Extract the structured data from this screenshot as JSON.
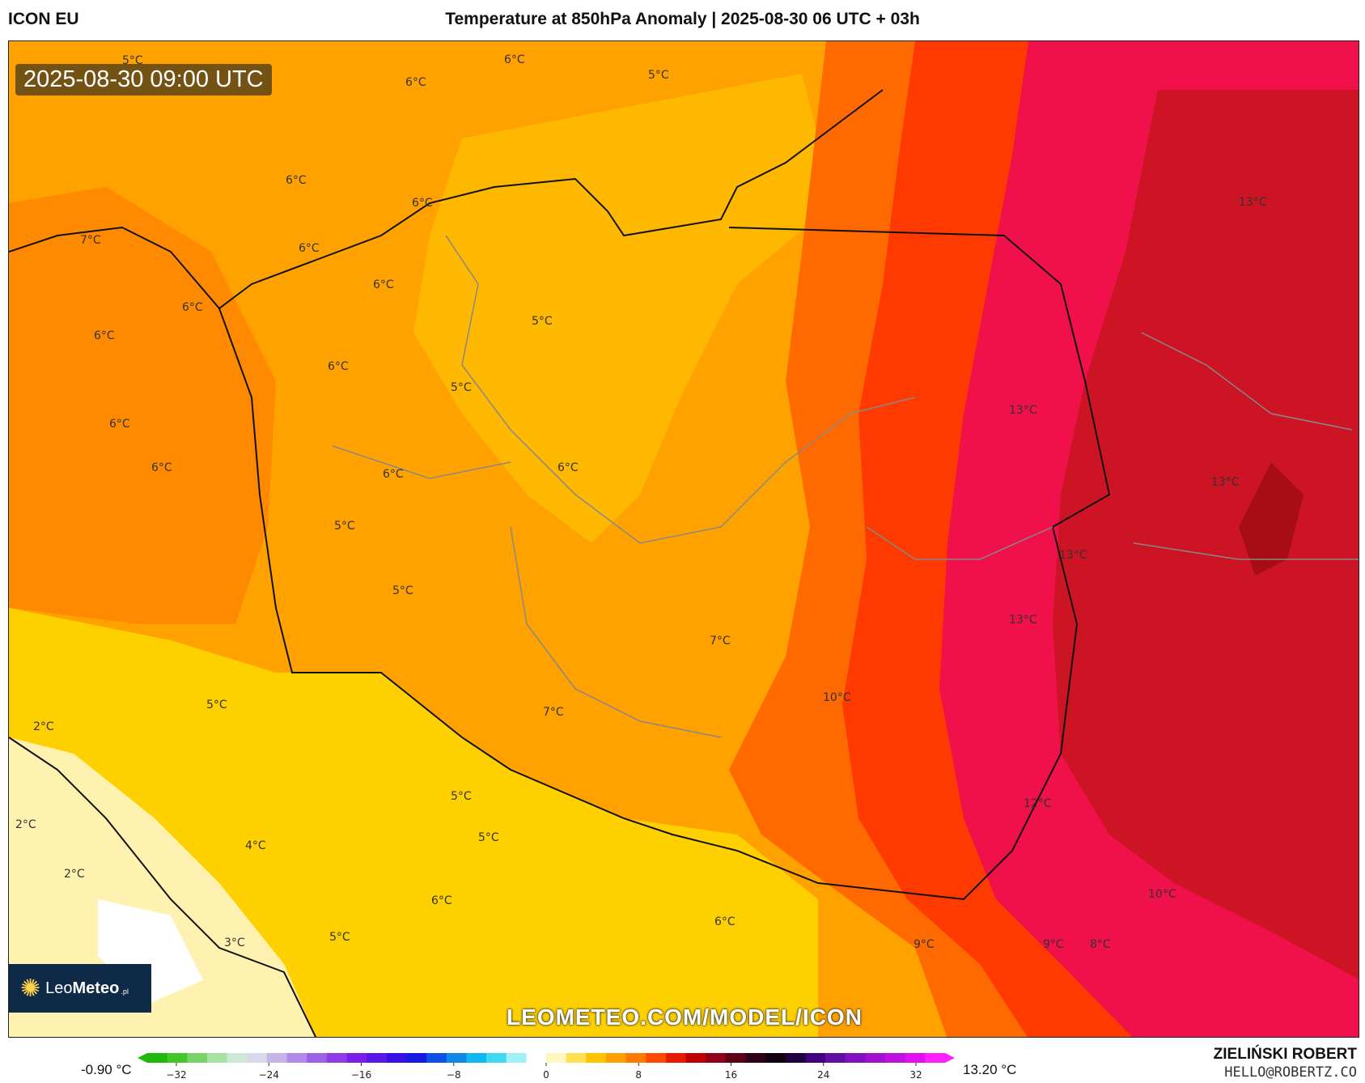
{
  "header": {
    "model": "ICON EU",
    "title": "Temperature at 850hPa Anomaly | 2025-08-30 06 UTC + 03h"
  },
  "map": {
    "timestamp": "2025-08-30 09:00 UTC",
    "watermark": "LEOMETEO.COM/MODEL/ICON",
    "logo": {
      "brand_light": "Leo",
      "brand_bold": "Meteo",
      "suffix": ".pl",
      "icon": "sun-icon"
    },
    "labels": [
      "6°C",
      "6°C",
      "5°C",
      "5°C",
      "6°C",
      "6°C",
      "7°C",
      "6°C",
      "6°C",
      "6°C",
      "6°C",
      "6°C",
      "5°C",
      "6°C",
      "6°C",
      "6°C",
      "5°C",
      "6°C",
      "5°C",
      "5°C",
      "7°C",
      "7°C",
      "5°C",
      "2°C",
      "13°C",
      "13°C",
      "13°C",
      "13°C",
      "13°C",
      "10°C",
      "12°C",
      "10°C",
      "2°C",
      "2°C",
      "4°C",
      "5°C",
      "5°C",
      "6°C",
      "3°C",
      "5°C",
      "6°C",
      "9°C",
      "9°C",
      "8°C"
    ]
  },
  "colorbar": {
    "min_label": "-0.90 °C",
    "max_label": "13.20 °C",
    "ticks": [
      "−32",
      "−24",
      "−16",
      "−8",
      "0",
      "8",
      "16",
      "24",
      "32"
    ],
    "colors": [
      "#1fb80f",
      "#44c62a",
      "#79d36a",
      "#a8e2a0",
      "#cfe8d6",
      "#d8d8e8",
      "#c6b4e6",
      "#b08ae6",
      "#9a60e6",
      "#8f3ce6",
      "#7a20e6",
      "#5a18e6",
      "#3a10e6",
      "#1818e6",
      "#1050e6",
      "#1088e6",
      "#10b8f0",
      "#40d8f0",
      "#a0f0f8",
      "#ffffff",
      "#fff6c0",
      "#ffe050",
      "#ffc400",
      "#ffa000",
      "#ff7a00",
      "#ff4a00",
      "#e81a00",
      "#c00000",
      "#900018",
      "#600018",
      "#300018",
      "#100010",
      "#200040",
      "#400080",
      "#6010a0",
      "#8010c0",
      "#a010d0",
      "#c010e0",
      "#e010f0",
      "#ff20ff"
    ]
  },
  "credits": {
    "name": "ZIELIŃSKI ROBERT",
    "email": "HELLO@ROBERTZ.CO"
  }
}
